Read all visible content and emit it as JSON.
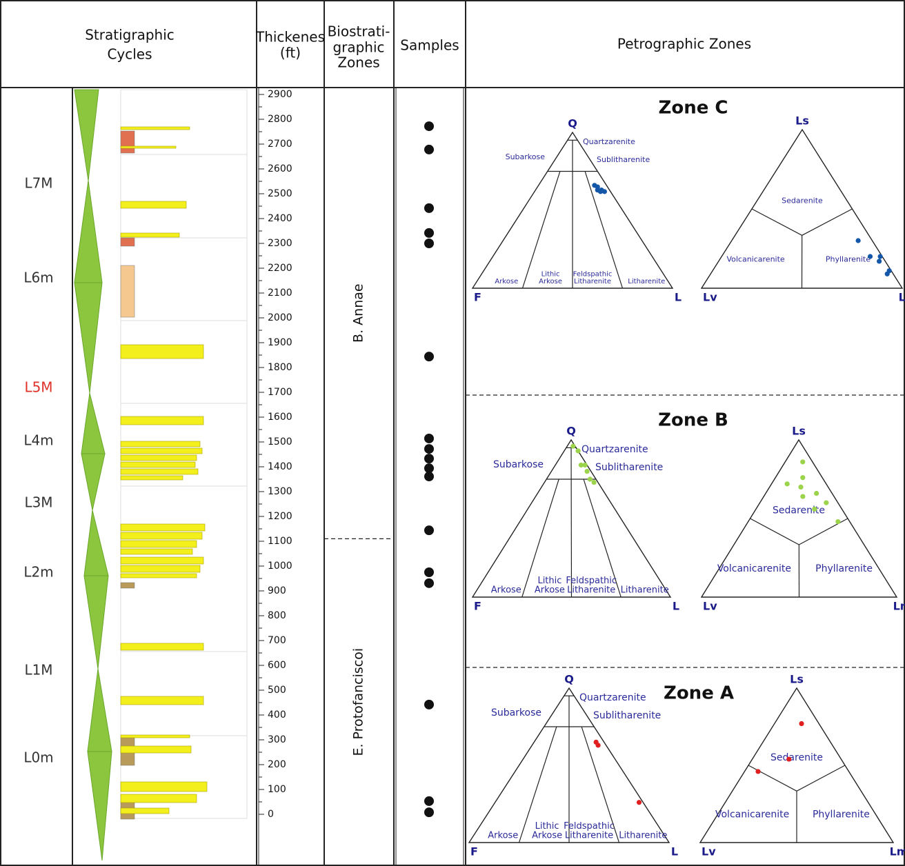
{
  "header": {
    "cycles": [
      "Stratigraphic",
      "Cycles"
    ],
    "thickness": [
      "Thickenes",
      "(ft)"
    ],
    "biozones": [
      "Biostrati-",
      "graphic",
      "Zones"
    ],
    "samples": "Samples",
    "petrographic": "Petrographic Zones"
  },
  "cycles": [
    {
      "label": "L7M",
      "color": "#333333"
    },
    {
      "label": "L6m",
      "color": "#333333"
    },
    {
      "label": "L5M",
      "color": "#e0302a"
    },
    {
      "label": "L4m",
      "color": "#333333"
    },
    {
      "label": "L3M",
      "color": "#333333"
    },
    {
      "label": "L2m",
      "color": "#333333"
    },
    {
      "label": "L1M",
      "color": "#333333"
    },
    {
      "label": "L0m",
      "color": "#333333"
    }
  ],
  "thickness": {
    "ylim": [
      0,
      2900
    ],
    "yticks": [
      0,
      100,
      200,
      300,
      400,
      500,
      600,
      700,
      800,
      900,
      1000,
      1100,
      1200,
      1300,
      1400,
      1500,
      1600,
      1700,
      1800,
      1900,
      2000,
      2100,
      2200,
      2300,
      2400,
      2500,
      2600,
      2700,
      2800,
      2900
    ]
  },
  "biozones": {
    "zones": [
      "B. Annae",
      "E. Protofanciscoi"
    ],
    "boundary": 1110
  },
  "samples": [
    2772,
    2678,
    2442,
    2342,
    2300,
    1844,
    1514,
    1472,
    1433,
    1394,
    1361,
    1144,
    975,
    931,
    442,
    53,
    8
  ],
  "petrographic_zones": [
    {
      "title": "Zone C",
      "point_color": "#1456a8",
      "qfl": {
        "apices": [
          "Q",
          "F",
          "L"
        ],
        "fields": [
          [
            "Quartzarenite"
          ],
          [
            "Subarkose"
          ],
          [
            "Sublitharenite"
          ],
          [
            "Arkose"
          ],
          [
            "Lithic",
            "Arkose"
          ],
          [
            "Feldspathic",
            "Litharenite"
          ],
          [
            "Litharenite"
          ]
        ],
        "points": [
          [
            66,
            6,
            28
          ],
          [
            65,
            5,
            30
          ],
          [
            63,
            6,
            31
          ],
          [
            63,
            4,
            33
          ],
          [
            62,
            5,
            33
          ],
          [
            62,
            3,
            35
          ]
        ]
      },
      "lithic": {
        "apices": [
          "Ls",
          "Lv",
          "Lm"
        ],
        "fields": [
          [
            "Sedarenite"
          ],
          [
            "Volcanicarenite"
          ],
          [
            "Phyllarenite"
          ]
        ],
        "points": [
          [
            30,
            7,
            63
          ],
          [
            20,
            6,
            74
          ],
          [
            20,
            1,
            79
          ],
          [
            17,
            3,
            80
          ],
          [
            11,
            1,
            88
          ],
          [
            9,
            3,
            88
          ]
        ]
      }
    },
    {
      "title": "Zone B",
      "point_color": "#9bd34a",
      "qfl": {
        "apices": [
          "Q",
          "F",
          "L"
        ],
        "fields": [
          [
            "Quartzarenite"
          ],
          [
            "Subarkose"
          ],
          [
            "Sublitharenite"
          ],
          [
            "Arkose"
          ],
          [
            "Lithic",
            "Arkose"
          ],
          [
            "Feldspathic",
            "Litharenite"
          ],
          [
            "Litharenite"
          ]
        ],
        "points": [
          [
            96,
            1,
            3
          ],
          [
            93,
            0,
            7
          ],
          [
            84,
            3,
            13
          ],
          [
            84,
            1,
            15
          ],
          [
            80,
            2,
            18
          ],
          [
            75,
            3,
            22
          ],
          [
            73,
            2,
            25
          ]
        ]
      },
      "lithic": {
        "apices": [
          "Ls",
          "Lv",
          "Lm"
        ],
        "fields": [
          [
            "Sedarenite"
          ],
          [
            "Volcanicarenite"
          ],
          [
            "Phyllarenite"
          ]
        ],
        "points": [
          [
            86,
            5,
            9
          ],
          [
            76,
            10,
            14
          ],
          [
            72,
            20,
            8
          ],
          [
            70,
            14,
            16
          ],
          [
            66,
            8,
            26
          ],
          [
            64,
            16,
            20
          ],
          [
            60,
            6,
            34
          ],
          [
            56,
            14,
            30
          ],
          [
            48,
            6,
            46
          ]
        ]
      }
    },
    {
      "title": "Zone A",
      "point_color": "#e02020",
      "qfl": {
        "apices": [
          "Q",
          "F",
          "L"
        ],
        "fields": [
          [
            "Quartzarenite"
          ],
          [
            "Subarkose"
          ],
          [
            "Sublitharenite"
          ],
          [
            "Arkose"
          ],
          [
            "Lithic",
            "Arkose"
          ],
          [
            "Feldspathic",
            "Litharenite"
          ],
          [
            "Litharenite"
          ]
        ],
        "points": [
          [
            65,
            4,
            31
          ],
          [
            63,
            4,
            33
          ],
          [
            26,
            2,
            72
          ]
        ]
      },
      "lithic": {
        "apices": [
          "Ls",
          "Lv",
          "Lm"
        ],
        "fields": [
          [
            "Sedarenite"
          ],
          [
            "Volcanicarenite"
          ],
          [
            "Phyllarenite"
          ]
        ],
        "points": [
          [
            77,
            9,
            14
          ],
          [
            54,
            27,
            19
          ],
          [
            46,
            47,
            7
          ]
        ]
      }
    }
  ]
}
